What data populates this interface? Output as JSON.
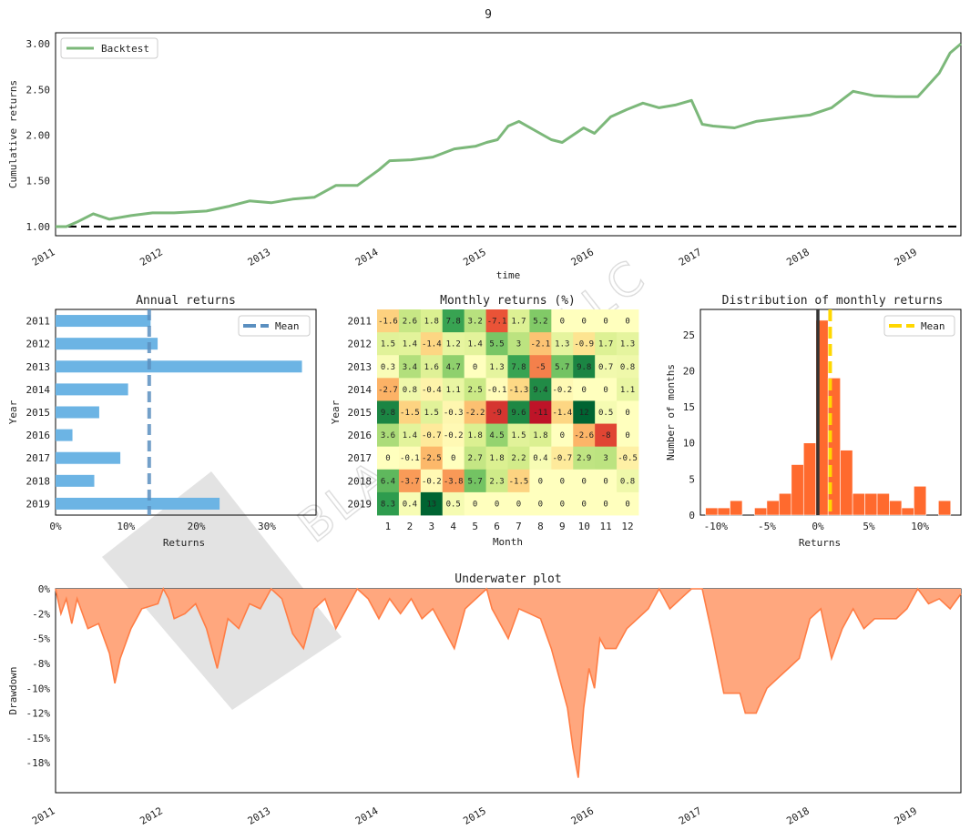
{
  "figure_title": "9",
  "watermark": "BLACKARBS LLC",
  "colors": {
    "backtest": "#7cb87a",
    "baseline": "#000000",
    "annual_bar": "#6cb4e4",
    "annual_mean": "#5a8fc0",
    "hist_bar": "#ff6a2e",
    "hist_zero": "#333333",
    "hist_mean": "#ffd700",
    "underwater_fill": "#ffa77e",
    "underwater_line": "#ff7d45"
  },
  "chart_data": [
    {
      "id": "cumulative",
      "type": "line",
      "ylabel": "Cumulative returns",
      "xlabel": "time",
      "legend": [
        "Backtest"
      ],
      "legend_position": "top-left",
      "xlim": [
        2011.0,
        2019.4
      ],
      "ylim": [
        0.9,
        3.12
      ],
      "yticks": [
        "1.00",
        "1.50",
        "2.00",
        "2.50",
        "3.00"
      ],
      "xticks": [
        "2011",
        "2012",
        "2013",
        "2014",
        "2015",
        "2016",
        "2017",
        "2018",
        "2019"
      ],
      "baseline": 1.0,
      "series": [
        {
          "name": "Backtest",
          "x": [
            2011.0,
            2011.1,
            2011.2,
            2011.35,
            2011.5,
            2011.7,
            2011.9,
            2012.1,
            2012.4,
            2012.6,
            2012.8,
            2013.0,
            2013.2,
            2013.4,
            2013.6,
            2013.8,
            2014.0,
            2014.1,
            2014.3,
            2014.5,
            2014.7,
            2014.9,
            2015.0,
            2015.1,
            2015.2,
            2015.3,
            2015.45,
            2015.6,
            2015.7,
            2015.8,
            2015.9,
            2016.0,
            2016.15,
            2016.3,
            2016.45,
            2016.6,
            2016.75,
            2016.9,
            2017.0,
            2017.1,
            2017.3,
            2017.5,
            2017.7,
            2017.85,
            2018.0,
            2018.2,
            2018.4,
            2018.6,
            2018.8,
            2019.0,
            2019.1,
            2019.2,
            2019.3,
            2019.4
          ],
          "values": [
            1.0,
            1.0,
            1.05,
            1.14,
            1.08,
            1.12,
            1.15,
            1.15,
            1.17,
            1.22,
            1.28,
            1.26,
            1.3,
            1.32,
            1.45,
            1.45,
            1.62,
            1.72,
            1.73,
            1.76,
            1.85,
            1.88,
            1.92,
            1.95,
            2.1,
            2.15,
            2.05,
            1.95,
            1.92,
            2.0,
            2.08,
            2.02,
            2.2,
            2.28,
            2.35,
            2.3,
            2.33,
            2.38,
            2.12,
            2.1,
            2.08,
            2.15,
            2.18,
            2.2,
            2.22,
            2.3,
            2.48,
            2.43,
            2.42,
            2.42,
            2.55,
            2.68,
            2.9,
            3.0
          ]
        }
      ]
    },
    {
      "id": "annual",
      "type": "bar",
      "orientation": "horizontal",
      "title": "Annual returns",
      "xlabel": "Returns",
      "ylabel": "Year",
      "categories": [
        "2011",
        "2012",
        "2013",
        "2014",
        "2015",
        "2016",
        "2017",
        "2018",
        "2019"
      ],
      "values": [
        13.5,
        14.5,
        35.0,
        10.3,
        6.2,
        2.4,
        9.2,
        5.5,
        23.3
      ],
      "mean": 13.3,
      "legend": [
        "Mean"
      ],
      "legend_position": "top-right",
      "xlim": [
        0,
        37
      ],
      "xticks": [
        "0%",
        "10%",
        "20%",
        "30%"
      ]
    },
    {
      "id": "monthly",
      "type": "heatmap",
      "title": "Monthly returns (%)",
      "xlabel": "Month",
      "ylabel": "Year",
      "rows": [
        "2011",
        "2012",
        "2013",
        "2014",
        "2015",
        "2016",
        "2017",
        "2018",
        "2019"
      ],
      "cols": [
        "1",
        "2",
        "3",
        "4",
        "5",
        "6",
        "7",
        "8",
        "9",
        "10",
        "11",
        "12"
      ],
      "values": [
        [
          "-1.6",
          "2.6",
          "1.8",
          "7.8",
          "3.2",
          "-7.1",
          "1.7",
          "5.2",
          "0",
          "0",
          "0",
          "0"
        ],
        [
          "1.5",
          "1.4",
          "-1.4",
          "1.2",
          "1.4",
          "5.5",
          "3",
          "-2.1",
          "1.3",
          "-0.9",
          "1.7",
          "1.3"
        ],
        [
          "0.3",
          "3.4",
          "1.6",
          "4.7",
          "0",
          "1.3",
          "7.8",
          "-5",
          "5.7",
          "9.8",
          "0.7",
          "0.8"
        ],
        [
          "-2.7",
          "0.8",
          "-0.4",
          "1.1",
          "2.5",
          "-0.1",
          "-1.3",
          "9.4",
          "-0.2",
          "0",
          "0",
          "1.1"
        ],
        [
          "9.8",
          "-1.5",
          "1.5",
          "-0.3",
          "-2.2",
          "-9",
          "9.6",
          "-11",
          "-1.4",
          "12",
          "0.5",
          "0"
        ],
        [
          "3.6",
          "1.4",
          "-0.7",
          "-0.2",
          "1.8",
          "4.5",
          "1.5",
          "1.8",
          "0",
          "-2.6",
          "-8",
          "0"
        ],
        [
          "0",
          "-0.1",
          "-2.5",
          "0",
          "2.7",
          "1.8",
          "2.2",
          "0.4",
          "-0.7",
          "2.9",
          "3",
          "-0.5"
        ],
        [
          "6.4",
          "-3.7",
          "-0.2",
          "-3.8",
          "5.7",
          "2.3",
          "-1.5",
          "0",
          "0",
          "0",
          "0",
          "0.8"
        ],
        [
          "8.3",
          "0.4",
          "13",
          "0.5",
          "0",
          "0",
          "0",
          "0",
          "0",
          "0",
          "0",
          "0"
        ]
      ]
    },
    {
      "id": "distribution",
      "type": "bar",
      "title": "Distribution of monthly returns",
      "xlabel": "Returns",
      "ylabel": "Number of months",
      "legend": [
        "Mean"
      ],
      "legend_position": "top-right",
      "xlim": [
        -11.5,
        14
      ],
      "ylim": [
        0,
        28.5
      ],
      "xticks": [
        "-10%",
        "-5%",
        "0%",
        "5%",
        "10%"
      ],
      "yticks": [
        "0",
        "5",
        "10",
        "15",
        "20",
        "25"
      ],
      "bin_left": [
        -11,
        -9.8,
        -8.6,
        -7.4,
        -6.2,
        -5.0,
        -3.8,
        -2.6,
        -1.4,
        -0.2,
        1.0,
        2.2,
        3.4,
        4.6,
        5.8,
        7.0,
        8.2,
        9.4,
        10.6,
        11.8
      ],
      "bin_width": 1.2,
      "counts": [
        1,
        1,
        2,
        0,
        1,
        2,
        3,
        7,
        10,
        27,
        19,
        9,
        3,
        3,
        3,
        2,
        1,
        4,
        0,
        2
      ],
      "mean": 1.2
    },
    {
      "id": "underwater",
      "type": "area",
      "title": "Underwater plot",
      "ylabel": "Drawdown",
      "xlim": [
        2011.0,
        2019.4
      ],
      "ylim": [
        -20.5,
        0
      ],
      "yticks": [
        "0%",
        "-2%",
        "-5%",
        "-8%",
        "-10%",
        "-12%",
        "-15%",
        "-18%"
      ],
      "xticks": [
        "2011",
        "2012",
        "2013",
        "2014",
        "2015",
        "2016",
        "2017",
        "2018",
        "2019"
      ],
      "x": [
        2011.0,
        2011.05,
        2011.1,
        2011.15,
        2011.2,
        2011.3,
        2011.4,
        2011.5,
        2011.55,
        2011.6,
        2011.7,
        2011.8,
        2011.95,
        2012.0,
        2012.05,
        2012.1,
        2012.2,
        2012.3,
        2012.4,
        2012.5,
        2012.6,
        2012.7,
        2012.8,
        2012.9,
        2013.0,
        2013.1,
        2013.2,
        2013.3,
        2013.4,
        2013.5,
        2013.6,
        2013.7,
        2013.8,
        2013.9,
        2014.0,
        2014.1,
        2014.2,
        2014.3,
        2014.4,
        2014.5,
        2014.6,
        2014.7,
        2014.8,
        2014.9,
        2015.0,
        2015.05,
        2015.1,
        2015.2,
        2015.3,
        2015.4,
        2015.5,
        2015.6,
        2015.7,
        2015.75,
        2015.8,
        2015.85,
        2015.9,
        2015.95,
        2016.0,
        2016.05,
        2016.1,
        2016.2,
        2016.3,
        2016.4,
        2016.5,
        2016.6,
        2016.7,
        2016.8,
        2016.9,
        2017.0,
        2017.05,
        2017.1,
        2017.2,
        2017.3,
        2017.35,
        2017.4,
        2017.5,
        2017.6,
        2017.7,
        2017.8,
        2017.9,
        2018.0,
        2018.1,
        2018.2,
        2018.3,
        2018.4,
        2018.5,
        2018.6,
        2018.7,
        2018.8,
        2018.9,
        2019.0,
        2019.1,
        2019.2,
        2019.3,
        2019.4
      ],
      "values": [
        0,
        -2.5,
        -1,
        -3.5,
        -1,
        -4,
        -3.5,
        -6.5,
        -9.5,
        -7,
        -4,
        -2,
        -1.5,
        0,
        -1,
        -3,
        -2.5,
        -1.5,
        -4,
        -8,
        -3,
        -4,
        -1.5,
        -2,
        0,
        -1,
        -4.5,
        -6,
        -2,
        -1,
        -4,
        -2,
        0,
        -1,
        -3,
        -1,
        -2.5,
        -1,
        -3,
        -2,
        -4,
        -6,
        -2,
        -1,
        0,
        -2,
        -3,
        -5,
        -2,
        -2.5,
        -3,
        -6,
        -10,
        -12,
        -16,
        -19,
        -12,
        -8,
        -10,
        -5,
        -6,
        -6,
        -4,
        -3,
        -2,
        0,
        -2,
        -1,
        0,
        0,
        -2.5,
        -5,
        -10.5,
        -10.5,
        -10.5,
        -12.5,
        -12.5,
        -10,
        -9,
        -8,
        -7,
        -3,
        -2,
        -7,
        -4,
        -2,
        -4,
        -3,
        -3,
        -3,
        -2,
        0,
        -1.5,
        -1,
        -2,
        -0.5
      ]
    }
  ]
}
